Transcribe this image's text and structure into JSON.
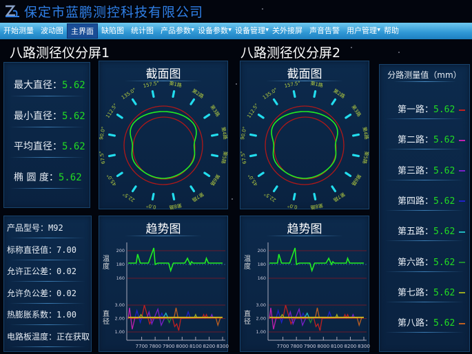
{
  "app": {
    "title": "保定市蓝鹏测控科技有限公司"
  },
  "nav": [
    {
      "label": "开始测量"
    },
    {
      "label": "波动图"
    },
    {
      "label": "主界面",
      "active": true
    },
    {
      "label": "缺陷图"
    },
    {
      "label": "统计图"
    },
    {
      "label": "产品参数",
      "dropdown": true
    },
    {
      "label": "设备参数",
      "dropdown": true
    },
    {
      "label": "设备管理",
      "dropdown": true
    },
    {
      "label": "关外接屏"
    },
    {
      "label": "声音告警"
    },
    {
      "label": "用户管理",
      "dropdown": true
    },
    {
      "label": "帮助"
    }
  ],
  "screens": [
    {
      "title": "八路测径仪分屏1"
    },
    {
      "title": "八路测径仪分屏2"
    }
  ],
  "stats": [
    {
      "label": "最大直径：",
      "value": "5.62"
    },
    {
      "label": "最小直径：",
      "value": "5.62"
    },
    {
      "label": "平均直径：",
      "value": "5.62"
    },
    {
      "label": "椭 圆 度：",
      "value": "5.62"
    }
  ],
  "params": [
    {
      "label": "产品型号：",
      "value": "M92"
    },
    {
      "label": "标称直径值：",
      "value": "7.00"
    },
    {
      "label": "允许正公差：",
      "value": "0.02"
    },
    {
      "label": "允许负公差：",
      "value": "0.02"
    },
    {
      "label": "热膨胀系数：",
      "value": "1.00"
    },
    {
      "label": "电路板温度：",
      "value": "正在获取"
    }
  ],
  "channels": {
    "title": "分路测量值（mm）",
    "items": [
      {
        "label": "第一路：",
        "value": "5.62",
        "color": "#c02020"
      },
      {
        "label": "第二路：",
        "value": "5.62",
        "color": "#c020b0"
      },
      {
        "label": "第三路：",
        "value": "5.62",
        "color": "#7a20c8"
      },
      {
        "label": "第四路：",
        "value": "5.62",
        "color": "#2020c8"
      },
      {
        "label": "第五路：",
        "value": "5.62",
        "color": "#20b8c0"
      },
      {
        "label": "第六路：",
        "value": "5.62",
        "color": "#208a30"
      },
      {
        "label": "第七路：",
        "value": "5.62",
        "color": "#9aa820"
      },
      {
        "label": "第八路：",
        "value": "5.62",
        "color": "#c06020"
      }
    ]
  },
  "chart_data": {
    "section": {
      "title": "截面图",
      "angle_labels": [
        "157.5°",
        "135.0°",
        "112.5°",
        "90.0°",
        "67.5°",
        "45.0°",
        "22.5°",
        "0.0°"
      ],
      "channel_labels": [
        "第1路",
        "第2路",
        "第3路",
        "第4路",
        "第5路",
        "第6路",
        "第7路",
        "第8路"
      ],
      "colors": {
        "ticks": "#22ddee",
        "limits": "#b01818",
        "profile": "#22ee22",
        "labels": "#b8d040"
      }
    },
    "trend": {
      "type": "line",
      "title": "趋势图",
      "x_ticks": [
        7700,
        7800,
        7900,
        8000,
        8100,
        8200,
        8300
      ],
      "xlim": [
        7600,
        8310
      ],
      "temperature": {
        "ylabel": "温度",
        "y_ticks": [
          "200",
          "180",
          "160"
        ],
        "ylim": [
          160,
          200
        ],
        "reference": 180,
        "color": "#22ee22",
        "points": [
          [
            7600,
            182
          ],
          [
            7660,
            182
          ],
          [
            7670,
            195
          ],
          [
            7690,
            182
          ],
          [
            7750,
            182
          ],
          [
            7790,
            204
          ],
          [
            7800,
            180
          ],
          [
            7820,
            182
          ],
          [
            7900,
            182
          ],
          [
            7915,
            171
          ],
          [
            7935,
            182
          ],
          [
            8020,
            182
          ],
          [
            8040,
            189
          ],
          [
            8060,
            180
          ],
          [
            8070,
            184
          ],
          [
            8080,
            182
          ],
          [
            8170,
            182
          ],
          [
            8180,
            189
          ],
          [
            8195,
            182
          ],
          [
            8300,
            182
          ]
        ]
      },
      "diameter": {
        "ylabel": "直径",
        "y_ticks": [
          "3.00",
          "2.00",
          "1.00"
        ],
        "ylim": [
          1,
          3
        ],
        "series": [
          {
            "color": "#c02020",
            "points": [
              [
                7620,
                2.0
              ],
              [
                7700,
                2.0
              ],
              [
                7720,
                3.0
              ],
              [
                7760,
                1.6
              ],
              [
                7780,
                2.0
              ],
              [
                7930,
                2.0
              ],
              [
                7945,
                1.4
              ],
              [
                7960,
                1.6
              ],
              [
                7975,
                1.1
              ],
              [
                7990,
                2.0
              ],
              [
                8150,
                2.05
              ],
              [
                8160,
                2.3
              ],
              [
                8170,
                2.05
              ],
              [
                8180,
                2.3
              ],
              [
                8190,
                2.05
              ]
            ]
          },
          {
            "color": "#c020b0",
            "points": [
              [
                7600,
                2.0
              ],
              [
                7610,
                2.8
              ],
              [
                7630,
                1.2
              ],
              [
                7650,
                2.05
              ],
              [
                7740,
                2.05
              ]
            ]
          },
          {
            "color": "#7a20c8",
            "points": [
              [
                7740,
                2.05
              ],
              [
                7755,
                2.5
              ],
              [
                7775,
                1.6
              ],
              [
                7820,
                2.7
              ],
              [
                7845,
                1.5
              ],
              [
                7870,
                2.05
              ],
              [
                8210,
                2.05
              ],
              [
                8220,
                2.3
              ],
              [
                8230,
                2.05
              ]
            ]
          },
          {
            "color": "#2020c8",
            "points": [
              [
                7650,
                2.05
              ],
              [
                7665,
                2.6
              ],
              [
                7690,
                1.7
              ],
              [
                7700,
                2.05
              ],
              [
                7835,
                2.05
              ],
              [
                7850,
                2.4
              ],
              [
                7865,
                2.05
              ],
              [
                8030,
                2.05
              ],
              [
                8045,
                2.5
              ],
              [
                8060,
                2.05
              ]
            ]
          },
          {
            "color": "#20b8c0",
            "points": [
              [
                7860,
                2.05
              ],
              [
                7880,
                2.4
              ],
              [
                7895,
                2.05
              ]
            ]
          },
          {
            "color": "#208a30",
            "points": [
              [
                7890,
                2.05
              ],
              [
                7905,
                1.7
              ],
              [
                7920,
                2.05
              ]
            ]
          },
          {
            "color": "#9aa820",
            "points": [
              [
                7680,
                2.05
              ],
              [
                7695,
                2.3
              ],
              [
                7710,
                2.05
              ],
              [
                8090,
                2.05
              ],
              [
                8100,
                2.3
              ],
              [
                8110,
                2.05
              ]
            ]
          },
          {
            "color": "#c06020",
            "points": [
              [
                7940,
                2.05
              ],
              [
                7955,
                2.8
              ],
              [
                7970,
                2.05
              ],
              [
                8250,
                2.05
              ],
              [
                8265,
                1.5
              ],
              [
                8285,
                2.1
              ]
            ]
          },
          {
            "color": "#d0b020",
            "points": [
              [
                7600,
                2.08
              ],
              [
                8300,
                2.08
              ]
            ]
          }
        ]
      }
    }
  }
}
